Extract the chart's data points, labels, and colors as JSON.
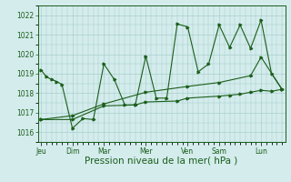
{
  "background_color": "#d4ecec",
  "grid_color": "#a0c8c8",
  "line_color": "#1a5e1a",
  "marker_color": "#1a5e1a",
  "xlabel": "Pression niveau de la mer( hPa )",
  "xlabel_fontsize": 7.5,
  "ylim": [
    1015.5,
    1022.5
  ],
  "yticks": [
    1016,
    1017,
    1018,
    1019,
    1020,
    1021,
    1022
  ],
  "day_labels": [
    "Jeu",
    "Dim",
    "Mar",
    "Mer",
    "Ven",
    "Sam",
    "Lun"
  ],
  "day_positions": [
    0,
    3,
    6,
    10,
    14,
    17,
    21
  ],
  "xlim": [
    -0.3,
    23.3
  ],
  "series1_x": [
    0,
    0.5,
    1,
    1.5,
    2,
    3,
    4,
    5,
    6,
    7,
    8,
    9,
    10,
    11,
    12,
    13,
    14,
    15,
    16,
    17,
    18,
    19,
    20,
    21,
    22,
    23
  ],
  "series1_y": [
    1019.2,
    1018.85,
    1018.7,
    1018.6,
    1018.45,
    1016.2,
    1016.7,
    1016.65,
    1019.5,
    1018.7,
    1017.4,
    1017.4,
    1019.9,
    1017.75,
    1017.75,
    1021.55,
    1021.4,
    1019.1,
    1019.5,
    1021.5,
    1020.35,
    1021.5,
    1020.3,
    1021.75,
    1019.0,
    1018.2
  ],
  "series2_x": [
    0,
    3,
    6,
    9,
    10,
    13,
    14,
    17,
    18,
    19,
    20,
    21,
    22,
    23
  ],
  "series2_y": [
    1016.65,
    1016.65,
    1017.35,
    1017.4,
    1017.55,
    1017.6,
    1017.75,
    1017.85,
    1017.9,
    1017.95,
    1018.05,
    1018.15,
    1018.1,
    1018.2
  ],
  "series3_x": [
    0,
    3,
    6,
    10,
    14,
    17,
    20,
    21,
    23
  ],
  "series3_y": [
    1016.65,
    1016.85,
    1017.45,
    1018.05,
    1018.35,
    1018.55,
    1018.9,
    1019.85,
    1018.2
  ],
  "figsize": [
    3.2,
    2.0
  ],
  "dpi": 100
}
